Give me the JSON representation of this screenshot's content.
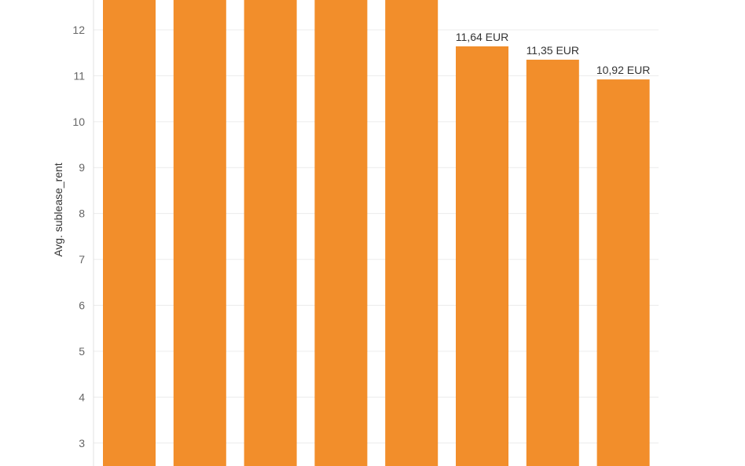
{
  "chart_data": {
    "type": "bar",
    "ylabel": "Avg. sublease_rent",
    "unit": "EUR",
    "ylim": [
      2.5,
      12.65
    ],
    "yticks": [
      3,
      4,
      5,
      6,
      7,
      8,
      9,
      10,
      11,
      12
    ],
    "grid": true,
    "bar_color": "#F28E2B",
    "values": [
      12.9,
      12.9,
      12.9,
      12.9,
      12.9,
      11.64,
      11.35,
      10.92
    ],
    "data_labels": [
      "",
      "",
      "",
      "",
      "",
      "11,64 EUR",
      "11,35 EUR",
      "10,92 EUR"
    ]
  }
}
